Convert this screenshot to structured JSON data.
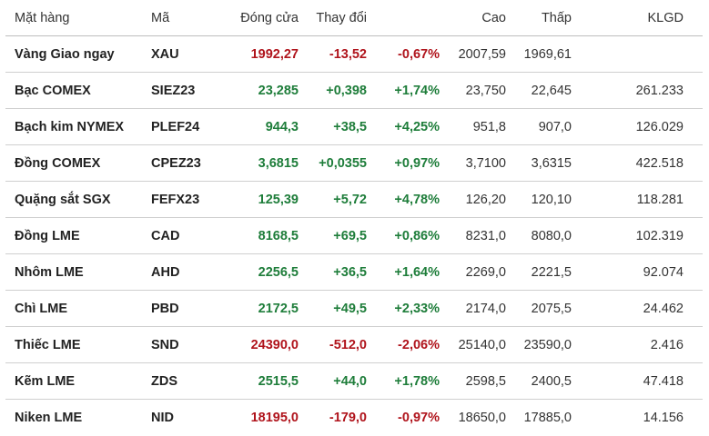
{
  "header": {
    "name": "Mặt hàng",
    "code": "Mã",
    "close": "Đóng cửa",
    "change": "Thay đổi",
    "high": "Cao",
    "low": "Thấp",
    "volume": "KLGD"
  },
  "colors": {
    "up": "#1e7d3a",
    "down": "#b0141c"
  },
  "rows": [
    {
      "name": "Vàng Giao ngay",
      "code": "XAU",
      "close": "1992,27",
      "change": "-13,52",
      "pct": "-0,67%",
      "high": "2007,59",
      "low": "1969,61",
      "volume": "",
      "dir": "down"
    },
    {
      "name": "Bạc COMEX",
      "code": "SIEZ23",
      "close": "23,285",
      "change": "+0,398",
      "pct": "+1,74%",
      "high": "23,750",
      "low": "22,645",
      "volume": "261.233",
      "dir": "up"
    },
    {
      "name": "Bạch kim NYMEX",
      "code": "PLEF24",
      "close": "944,3",
      "change": "+38,5",
      "pct": "+4,25%",
      "high": "951,8",
      "low": "907,0",
      "volume": "126.029",
      "dir": "up"
    },
    {
      "name": "Đồng COMEX",
      "code": "CPEZ23",
      "close": "3,6815",
      "change": "+0,0355",
      "pct": "+0,97%",
      "high": "3,7100",
      "low": "3,6315",
      "volume": "422.518",
      "dir": "up"
    },
    {
      "name": "Quặng sắt SGX",
      "code": "FEFX23",
      "close": "125,39",
      "change": "+5,72",
      "pct": "+4,78%",
      "high": "126,20",
      "low": "120,10",
      "volume": "118.281",
      "dir": "up"
    },
    {
      "name": "Đồng LME",
      "code": "CAD",
      "close": "8168,5",
      "change": "+69,5",
      "pct": "+0,86%",
      "high": "8231,0",
      "low": "8080,0",
      "volume": "102.319",
      "dir": "up"
    },
    {
      "name": "Nhôm LME",
      "code": "AHD",
      "close": "2256,5",
      "change": "+36,5",
      "pct": "+1,64%",
      "high": "2269,0",
      "low": "2221,5",
      "volume": "92.074",
      "dir": "up"
    },
    {
      "name": "Chì LME",
      "code": "PBD",
      "close": "2172,5",
      "change": "+49,5",
      "pct": "+2,33%",
      "high": "2174,0",
      "low": "2075,5",
      "volume": "24.462",
      "dir": "up"
    },
    {
      "name": "Thiếc LME",
      "code": "SND",
      "close": "24390,0",
      "change": "-512,0",
      "pct": "-2,06%",
      "high": "25140,0",
      "low": "23590,0",
      "volume": "2.416",
      "dir": "down"
    },
    {
      "name": "Kẽm LME",
      "code": "ZDS",
      "close": "2515,5",
      "change": "+44,0",
      "pct": "+1,78%",
      "high": "2598,5",
      "low": "2400,5",
      "volume": "47.418",
      "dir": "up"
    },
    {
      "name": "Niken LME",
      "code": "NID",
      "close": "18195,0",
      "change": "-179,0",
      "pct": "-0,97%",
      "high": "18650,0",
      "low": "17885,0",
      "volume": "14.156",
      "dir": "down"
    }
  ]
}
